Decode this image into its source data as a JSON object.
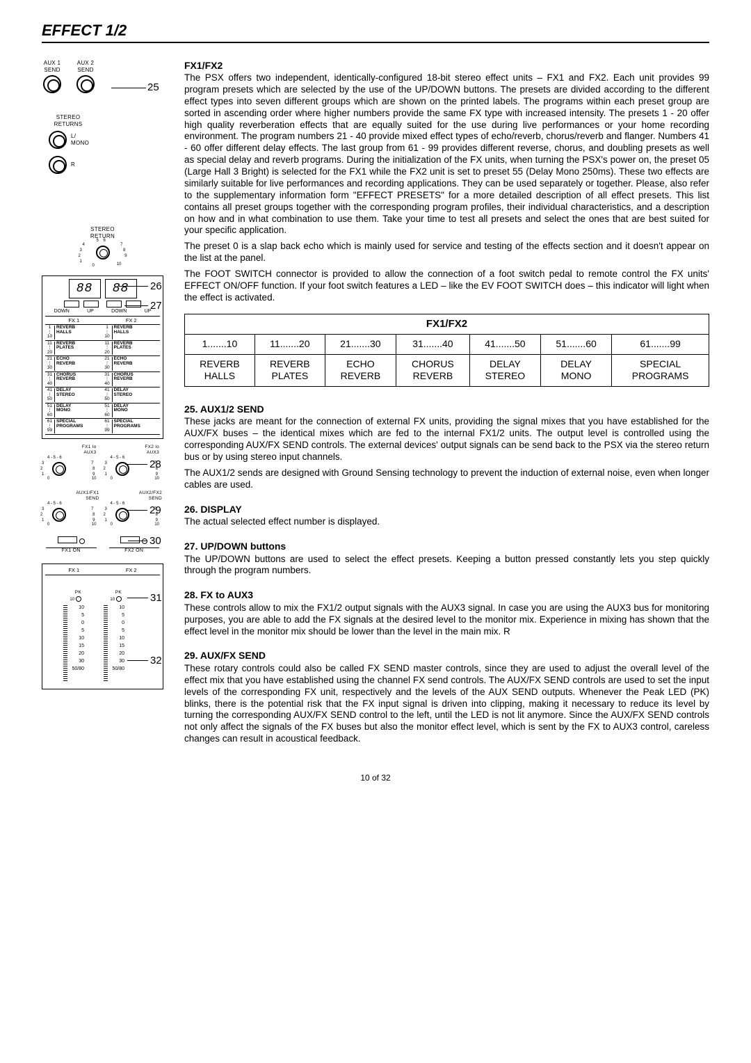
{
  "page_title": "EFFECT 1/2",
  "footer": "10 of 32",
  "fx_intro": {
    "heading": "FX1/FX2",
    "body": "The PSX offers two independent, identically-configured 18-bit stereo effect units – FX1 and FX2. Each unit provides 99 program presets which are selected by the use of the UP/DOWN buttons. The presets are divided according to the different effect types into seven different groups which are shown on the printed labels. The programs within each preset group are sorted in ascending order where higher numbers provide the same FX type with increased intensity. The presets 1 - 20 offer high quality reverberation effects that are equally suited for the use during live performances or your home recording environment. The program numbers 21 - 40 provide mixed effect types of echo/reverb, chorus/reverb and flanger. Numbers 41 - 60 offer different delay effects. The last group from 61 - 99 provides different reverse, chorus, and doubling presets as well as special delay and reverb programs. During the initialization of the FX units, when turning the PSX's power on, the preset 05 (Large Hall 3 Bright) is selected for the FX1 while the FX2 unit is set to preset 55 (Delay Mono 250ms). These two effects are similarly suitable for live performances and recording applications. They can be used separately or together. Please, also refer to the supplementary information form \"EFFECT PRESETS\" for a more detailed description of all effect presets. This list contains all preset groups together with the corresponding program profiles, their individual characteristics, and a description on how and in what combination to use them. Take your time to test all presets and select the ones that are best suited for your specific application.",
    "body2": "The preset 0 is a slap back echo which is mainly used for service and testing of the effects section and it doesn't appear on the list at the panel.",
    "body3": "The FOOT SWITCH connector is provided to allow the connection of a foot switch pedal to remote control the FX units' EFFECT ON/OFF function. If your foot switch features a LED – like the EV FOOT SWITCH does – this indicator will light when the effect is activated."
  },
  "fx_table": {
    "title": "FX1/FX2",
    "ranges": [
      "1.......10",
      "11.......20",
      "21.......30",
      "31.......40",
      "41.......50",
      "51.......60",
      "61.......99"
    ],
    "names": [
      "REVERB HALLS",
      "REVERB PLATES",
      "ECHO REVERB",
      "CHORUS REVERB",
      "DELAY STEREO",
      "DELAY MONO",
      "SPECIAL PROGRAMS"
    ]
  },
  "sections": [
    {
      "heading": "25. AUX1/2 SEND",
      "body": "These jacks are meant for the connection of external FX units, providing the signal mixes that you have established for the AUX/FX buses – the identical mixes which are fed to the internal FX1/2 units. The output level is controlled using the corresponding AUX/FX SEND controls. The external devices' output signals can be send back to the PSX via the stereo return bus or by using stereo input channels.",
      "body2": "The AUX1/2 sends are designed with Ground Sensing technology to prevent the induction of external noise, even when longer cables are used."
    },
    {
      "heading": "26. DISPLAY",
      "body": "The actual selected effect number is displayed."
    },
    {
      "heading": "27. UP/DOWN buttons",
      "body": "The UP/DOWN buttons are used to select the effect presets. Keeping a button pressed constantly lets you step quickly through the program numbers."
    },
    {
      "heading": "28. FX to AUX3",
      "body": "These controls allow to mix the FX1/2 output signals with the AUX3 signal. In case you are using the AUX3 bus for monitoring purposes, you are able to add the FX signals at the desired level to the monitor mix. Experience in mixing has shown that the effect level in the monitor mix should be lower than the level in the main mix.  R"
    },
    {
      "heading": "29. AUX/FX SEND",
      "body": "These rotary controls could also be called FX SEND master controls, since they are used to adjust the overall level of the effect mix that you have established using the channel FX send controls. The AUX/FX SEND controls are used to set the input levels of the corresponding FX unit, respectively and the levels of the AUX SEND outputs. Whenever the Peak LED (PK) blinks, there is the potential risk that the FX input signal is driven into clipping, making it necessary to reduce its level by turning the corresponding AUX/FX SEND control to the left, until the LED is not lit anymore. Since the AUX/FX SEND controls not only affect the signals of the FX buses but also the monitor effect level, which is sent by the FX to AUX3 control, careless changes can result in acoustical feedback."
    }
  ],
  "left_labels": {
    "aux1_send": "AUX 1\nSEND",
    "aux2_send": "AUX 2\nSEND",
    "stereo_returns": "STEREO\nRETURNS",
    "l_mono": "L/\nMONO",
    "r": "R",
    "stereo_return": "STEREO\nRETURN",
    "down": "DOWN",
    "up": "UP",
    "fx1": "FX 1",
    "fx2": "FX 2",
    "digits": "88",
    "fx1_lo_aux3": "FX1 lo\nAUX3",
    "fx2_lo_aux3": "FX2 lo\nAUX3",
    "aux1_fx1_send": "AUX1/FX1\nSEND",
    "aux2_fx2_send": "AUX2/FX2\nSEND",
    "fx1_on": "FX1 ON",
    "fx2_on": "FX2 ON",
    "pk": "PK",
    "preset_rows": [
      {
        "rng": "1\n⋮\n10",
        "name": "REVERB\nHALLS"
      },
      {
        "rng": "11\n⋮\n20",
        "name": "REVERB\nPLATES"
      },
      {
        "rng": "21\n⋮\n30",
        "name": "ECHO\nREVERB"
      },
      {
        "rng": "31\n⋮\n40",
        "name": "CHORUS\nREVERB"
      },
      {
        "rng": "41\n⋮\n50",
        "name": "DELAY\nSTEREO"
      },
      {
        "rng": "51\n⋮\n60",
        "name": "DELAY\nMONO"
      },
      {
        "rng": "61\n⋮\n99",
        "name": "SPECIAL\nPROGRAMS"
      }
    ],
    "fader_marks": [
      "10",
      "5",
      "0",
      "5",
      "10",
      "15",
      "20",
      "30",
      "50\n80"
    ]
  },
  "callouts": {
    "c25": "25",
    "c26": "26",
    "c27": "27",
    "c28": "28",
    "c29": "29",
    "c30": "30",
    "c31": "31",
    "c32": "32"
  }
}
